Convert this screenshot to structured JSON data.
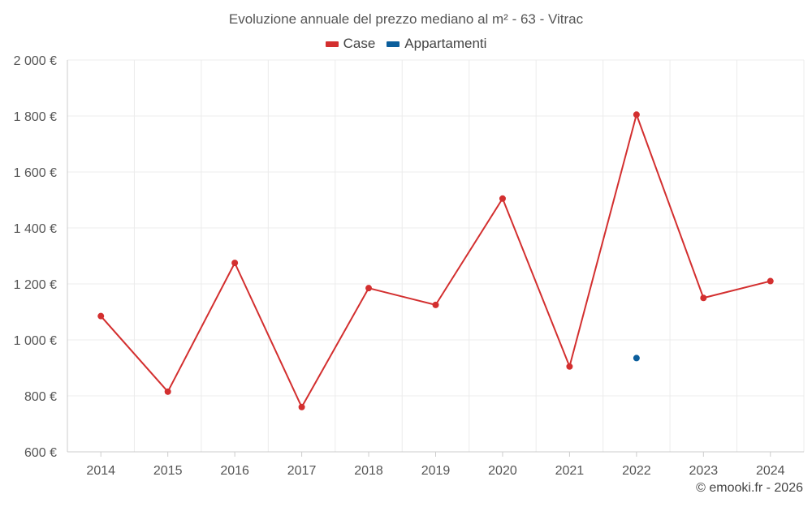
{
  "chart_data": {
    "type": "line",
    "title": "Evoluzione annuale del prezzo mediano al m² - 63 - Vitrac",
    "categories": [
      "2014",
      "2015",
      "2016",
      "2017",
      "2018",
      "2019",
      "2020",
      "2021",
      "2022",
      "2023",
      "2024"
    ],
    "series": [
      {
        "name": "Case",
        "color": "#d32f2f",
        "values": [
          1085,
          815,
          1275,
          760,
          1185,
          1125,
          1505,
          905,
          1805,
          1150,
          1210
        ]
      },
      {
        "name": "Appartamenti",
        "color": "#0b5e9c",
        "values": [
          null,
          null,
          null,
          null,
          null,
          null,
          null,
          null,
          935,
          null,
          null
        ]
      }
    ],
    "ylim": [
      600,
      2000
    ],
    "yticks": [
      600,
      800,
      1000,
      1200,
      1400,
      1600,
      1800,
      2000
    ],
    "ytick_labels": [
      "600 €",
      "800 €",
      "1 000 €",
      "1 200 €",
      "1 400 €",
      "1 600 €",
      "1 800 €",
      "2 000 €"
    ],
    "grid": true,
    "legend_position": "top"
  },
  "credit": "© emooki.fr - 2026"
}
